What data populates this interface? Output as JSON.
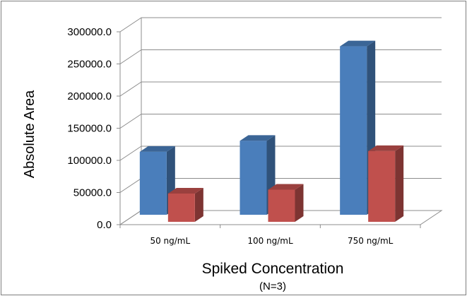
{
  "chart_data": {
    "type": "bar",
    "style": "3d-clustered-column",
    "title": "",
    "xlabel": "Spiked Concentration",
    "xlabel_sub": "(N=3)",
    "ylabel": "Absolute Area",
    "ylim": [
      0,
      300000
    ],
    "yticks": [
      "0.0",
      "50000.0",
      "100000.0",
      "150000.0",
      "200000.0",
      "250000.0",
      "300000.0"
    ],
    "grid": true,
    "legend": "none",
    "categories": [
      "50 ng/mL",
      "100 ng/mL",
      "750 ng/mL"
    ],
    "series": [
      {
        "color": "#4a7ebb",
        "values": [
          98000,
          115000,
          262000
        ]
      },
      {
        "color": "#c0504d",
        "values": [
          44000,
          50000,
          110000
        ]
      }
    ]
  }
}
